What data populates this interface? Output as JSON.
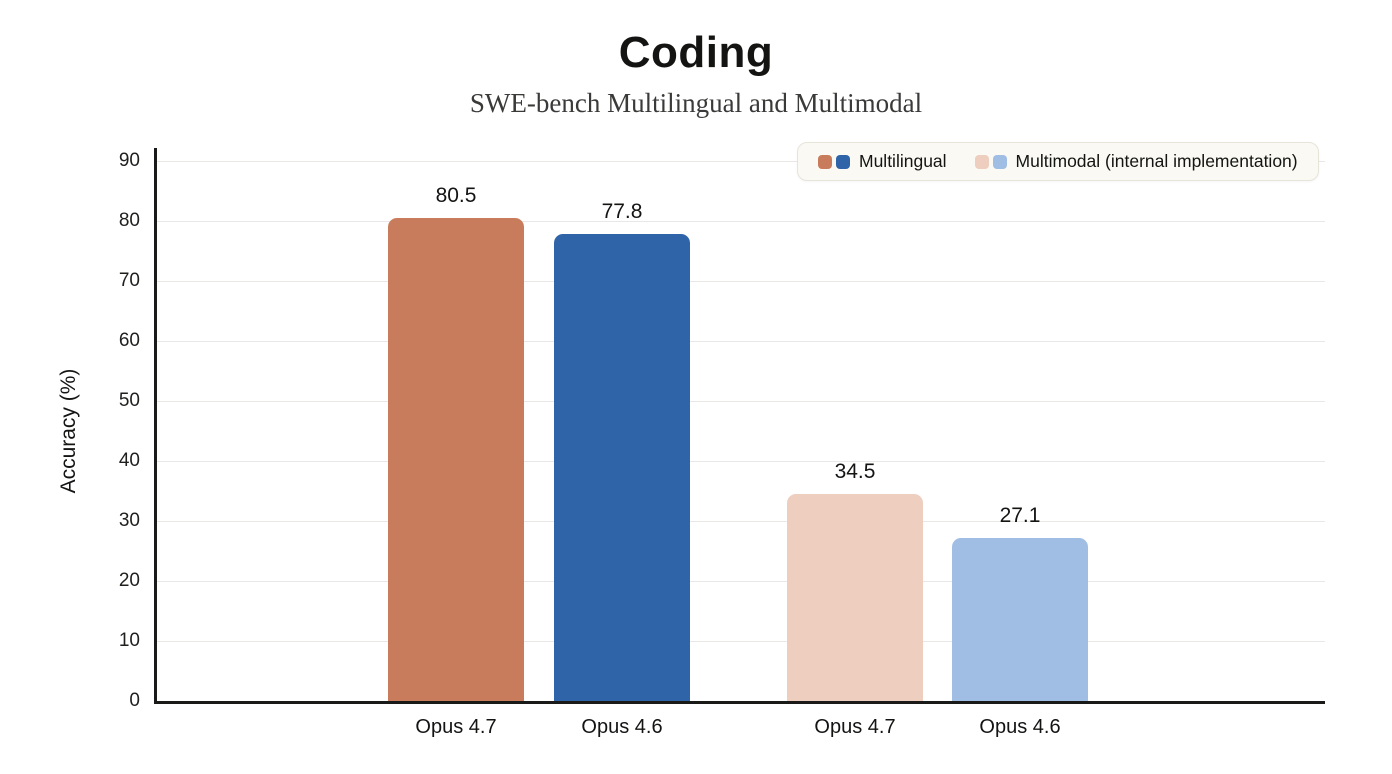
{
  "title": "Coding",
  "subtitle": "SWE-bench Multilingual and Multimodal",
  "colors": {
    "multilingual_opus47": "#c87c5c",
    "multilingual_opus46": "#2f64a8",
    "multimodal_opus47": "#eecebf",
    "multimodal_opus46": "#a0bde4",
    "gridline": "#e9e8e6",
    "axis": "#1a1a19",
    "legend_background": "#faf9f3"
  },
  "chart_data": {
    "type": "bar",
    "title": "Coding",
    "subtitle": "SWE-bench Multilingual and Multimodal",
    "xlabel": "",
    "ylabel": "Accuracy (%)",
    "ylim": [
      0,
      90
    ],
    "ytick_interval": 10,
    "yticks": [
      0,
      10,
      20,
      30,
      40,
      50,
      60,
      70,
      80,
      90
    ],
    "grid": true,
    "legend_position": "top-right",
    "categories": [
      "Opus 4.7",
      "Opus 4.6",
      "Opus 4.7",
      "Opus 4.6"
    ],
    "values": [
      80.5,
      77.8,
      34.5,
      27.1
    ],
    "value_labels": [
      "80.5",
      "77.8",
      "34.5",
      "27.1"
    ],
    "bar_colors": [
      "#c87c5c",
      "#2f64a8",
      "#eecebf",
      "#a0bde4"
    ],
    "legend": [
      {
        "label": "Multilingual",
        "swatches": [
          "#c87c5c",
          "#2f64a8"
        ]
      },
      {
        "label": "Multimodal (internal implementation)",
        "swatches": [
          "#eecebf",
          "#a0bde4"
        ]
      }
    ]
  }
}
